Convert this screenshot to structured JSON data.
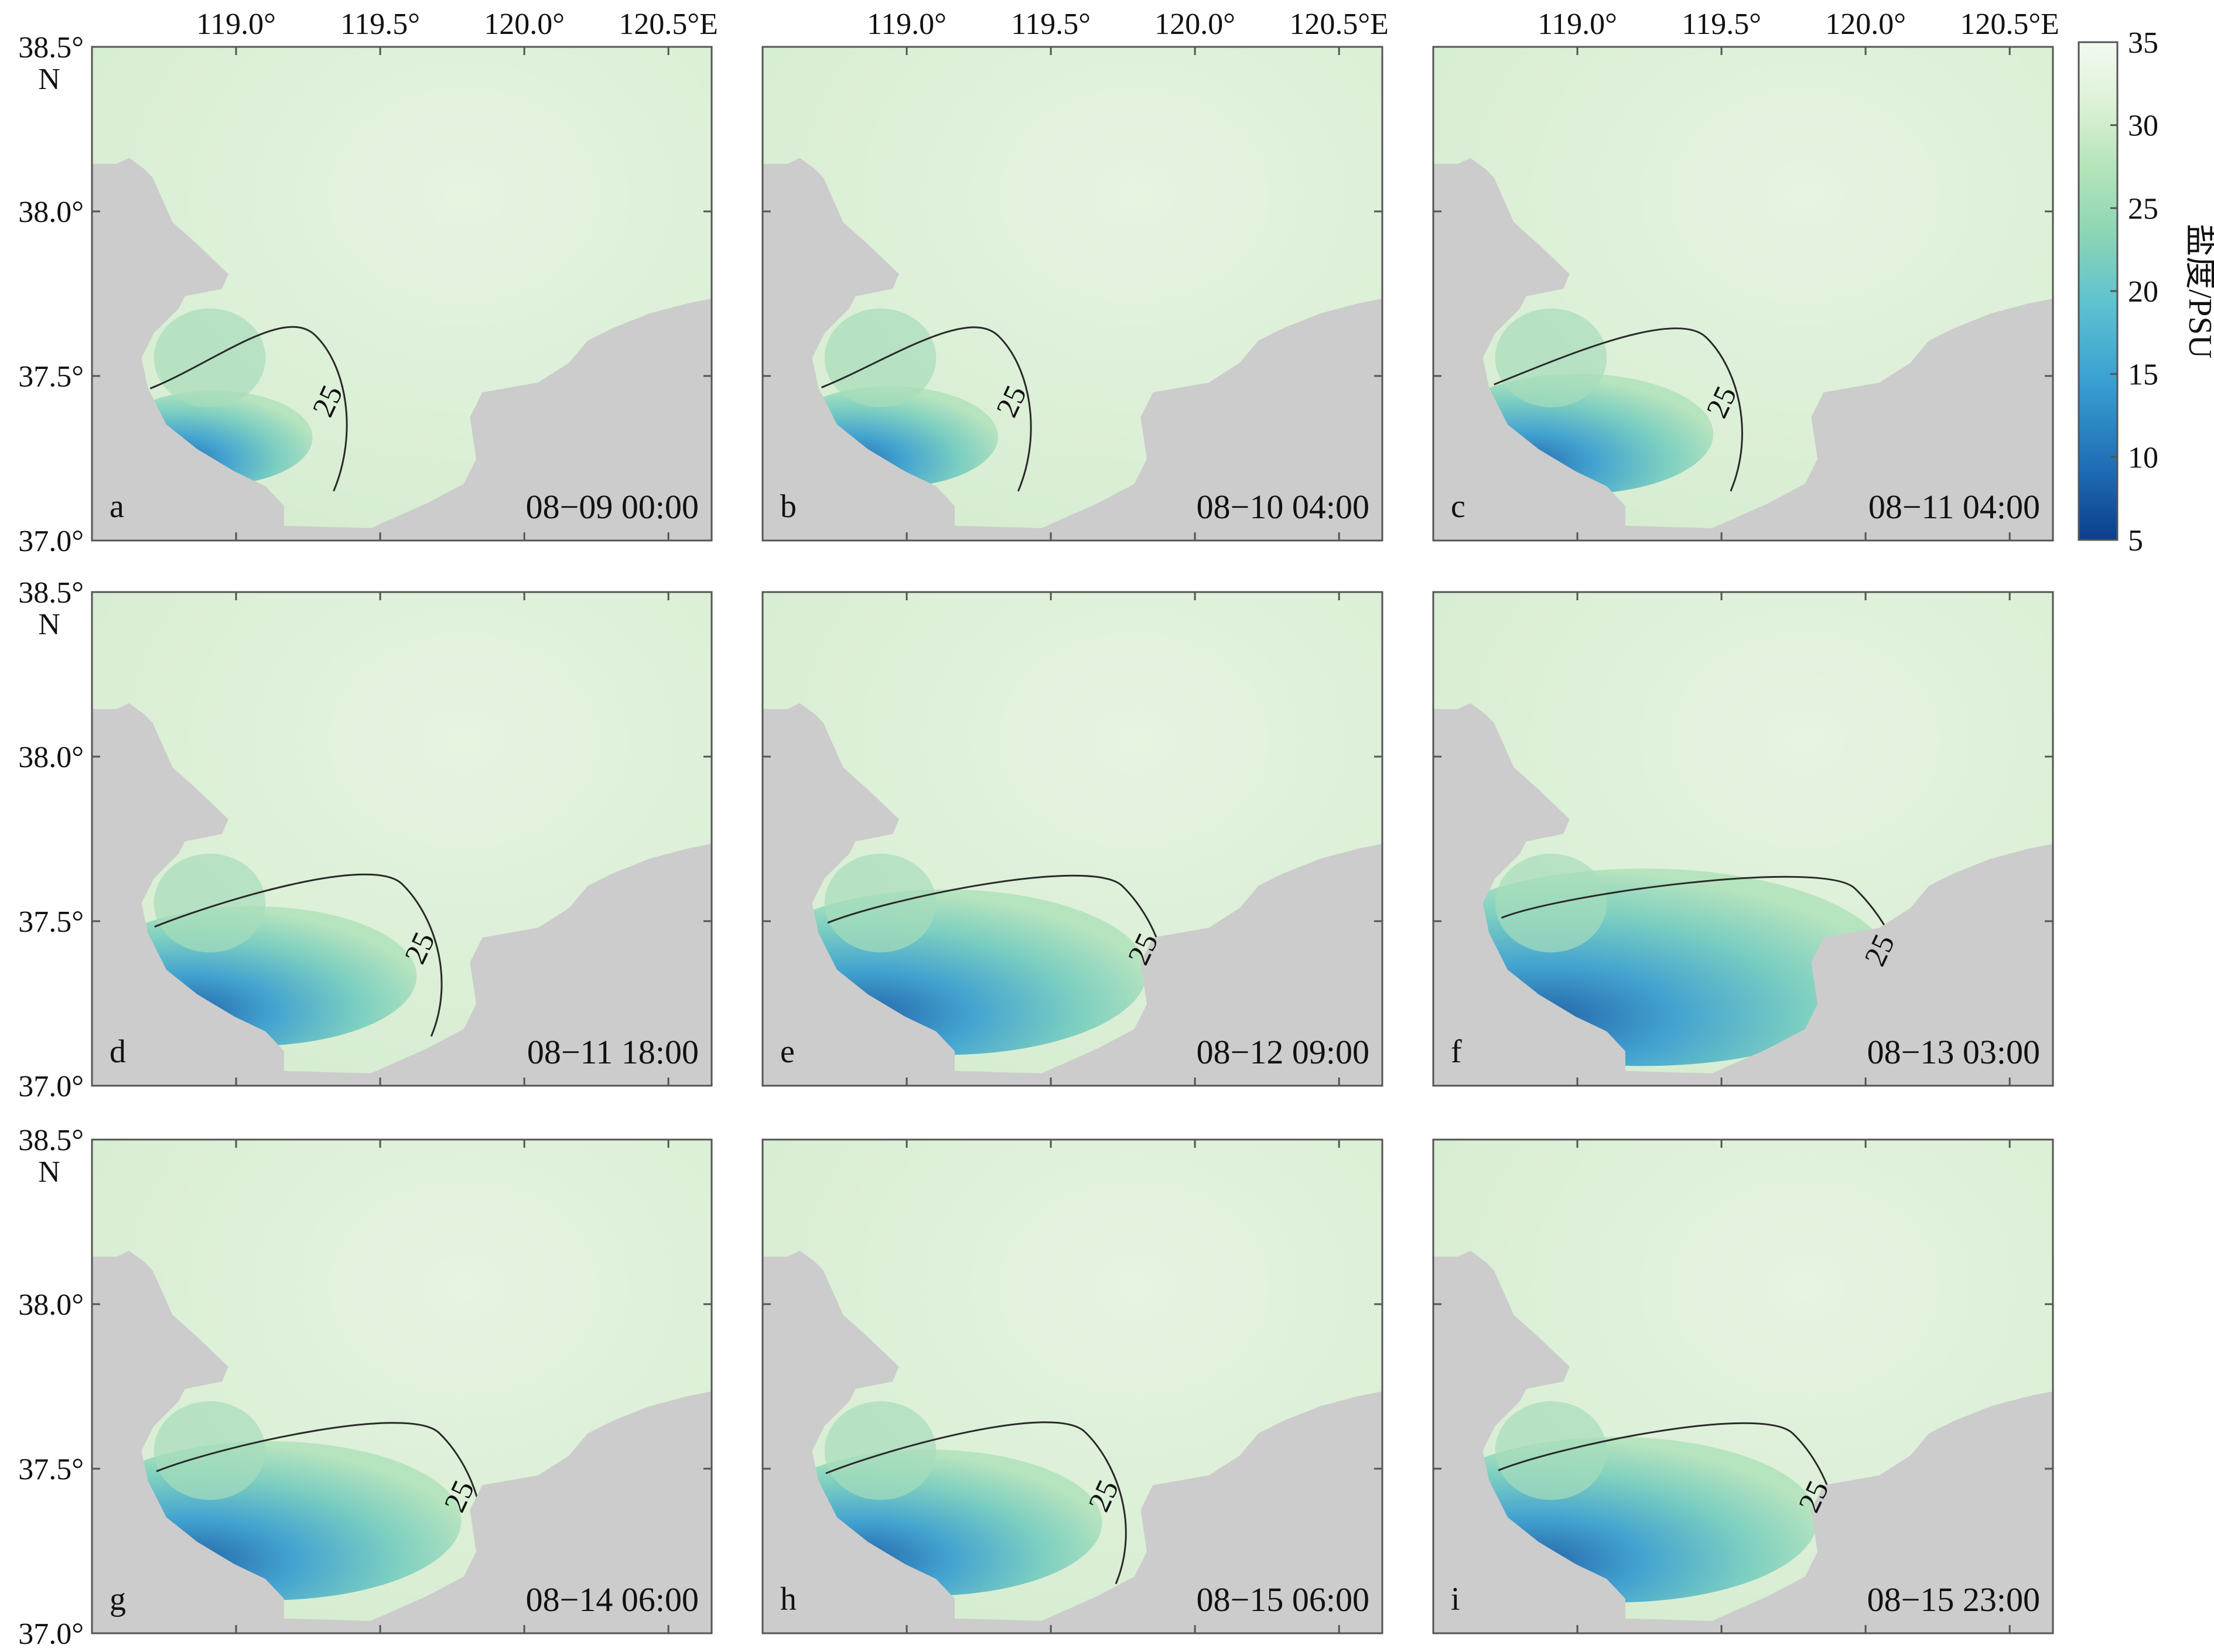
{
  "figure": {
    "lon_tick_labels": [
      "119.0°",
      "119.5°",
      "120.0°",
      "120.5°E"
    ],
    "lat_tick_labels": [
      "38.5°",
      "38.0°",
      "37.5°",
      "37.0°"
    ],
    "lat_hemisphere": "N",
    "contour_value": "25",
    "extent": {
      "lon": [
        118.5,
        120.65
      ],
      "lat": [
        37.0,
        38.5
      ]
    },
    "grid": false
  },
  "colorbar": {
    "title": "盐度/PSU",
    "ticks": [
      "35",
      "30",
      "25",
      "20",
      "15",
      "10",
      "5"
    ],
    "range": [
      5,
      35
    ],
    "colors": [
      "#0b3e8c",
      "#1f6fb6",
      "#3aa0d2",
      "#5fc3cf",
      "#8dd6b5",
      "#b8e6bb",
      "#def1d8",
      "#f3faf1"
    ]
  },
  "colors": {
    "land": "#cccccc",
    "sea": "#dcefd6",
    "frame": "#555555",
    "contour": "#2a2a2a"
  },
  "panels": [
    {
      "letter": "a",
      "time": "08−09 00:00",
      "plume_extent": 0.2
    },
    {
      "letter": "b",
      "time": "08−10 04:00",
      "plume_extent": 0.25
    },
    {
      "letter": "c",
      "time": "08−11 04:00",
      "plume_extent": 0.4
    },
    {
      "letter": "d",
      "time": "08−11 18:00",
      "plume_extent": 0.55
    },
    {
      "letter": "e",
      "time": "08−12 09:00",
      "plume_extent": 0.75
    },
    {
      "letter": "f",
      "time": "08−13 03:00",
      "plume_extent": 1.0
    },
    {
      "letter": "g",
      "time": "08−14 06:00",
      "plume_extent": 0.7
    },
    {
      "letter": "h",
      "time": "08−15 06:00",
      "plume_extent": 0.6
    },
    {
      "letter": "i",
      "time": "08−15 23:00",
      "plume_extent": 0.75
    }
  ]
}
